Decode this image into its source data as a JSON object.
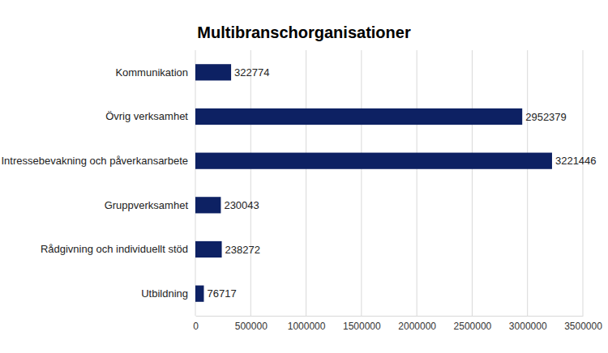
{
  "chart_data": {
    "type": "bar",
    "orientation": "horizontal",
    "title": "Multibranschorganisationer",
    "categories": [
      "Kommunikation",
      "Övrig verksamhet",
      "Intressebevakning och påverkansarbete",
      "Gruppverksamhet",
      "Rådgivning och individuellt stöd",
      "Utbildning"
    ],
    "values": [
      322774,
      2952379,
      3221446,
      230043,
      238272,
      76717
    ],
    "color": "#0d2163",
    "xlim": [
      0,
      3500000
    ],
    "xticks": [
      0,
      500000,
      1000000,
      1500000,
      2000000,
      2500000,
      3000000,
      3500000
    ],
    "grid": true,
    "data_labels": true
  }
}
